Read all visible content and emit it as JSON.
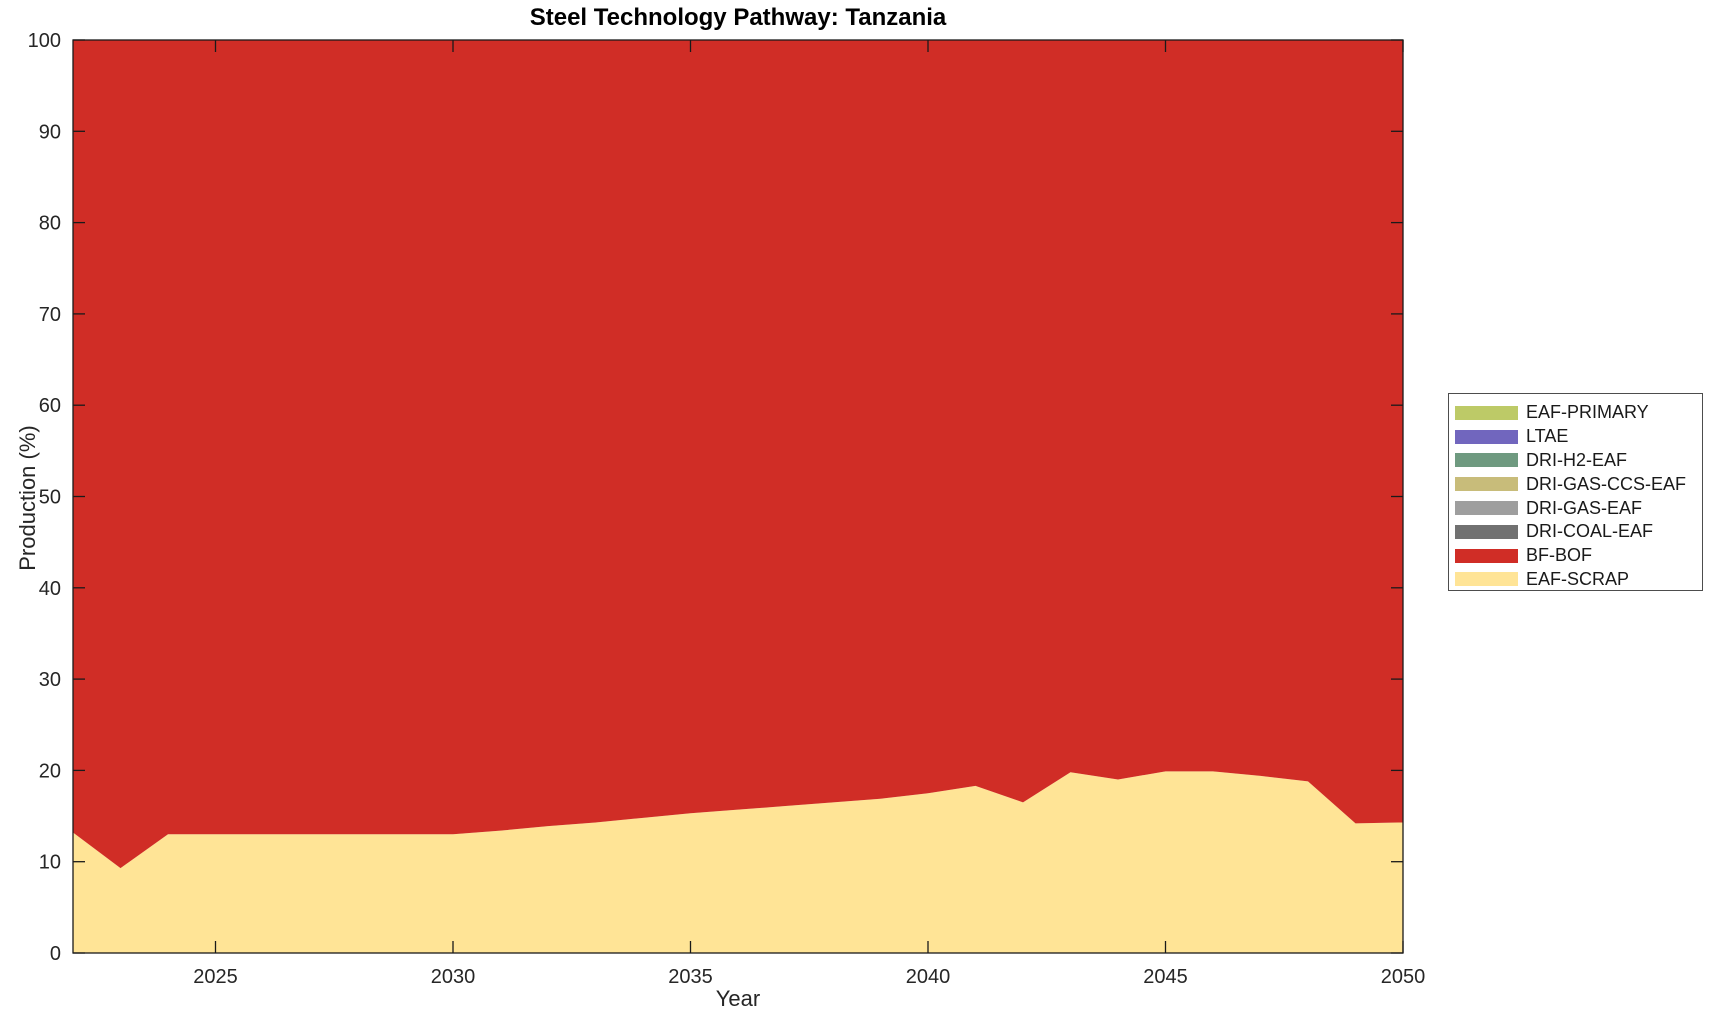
{
  "title": "Steel Technology Pathway: Tanzania",
  "axes": {
    "xlabel": "Year",
    "ylabel": "Production (%)",
    "x_ticks": [
      2025,
      2030,
      2035,
      2040,
      2045,
      2050
    ],
    "y_ticks": [
      0,
      10,
      20,
      30,
      40,
      50,
      60,
      70,
      80,
      90,
      100
    ],
    "axis_color": "#1a1a1a",
    "tick_label_color": "#262626"
  },
  "chart_data": {
    "type": "area",
    "stacked": true,
    "title": "Steel Technology Pathway: Tanzania",
    "xlabel": "Year",
    "ylabel": "Production (%)",
    "xlim": [
      2022,
      2050
    ],
    "ylim": [
      0,
      100
    ],
    "grid": false,
    "legend_position": "right-outside",
    "x": [
      2022,
      2023,
      2024,
      2025,
      2026,
      2027,
      2028,
      2029,
      2030,
      2031,
      2032,
      2033,
      2034,
      2035,
      2036,
      2037,
      2038,
      2039,
      2040,
      2041,
      2042,
      2043,
      2044,
      2045,
      2046,
      2047,
      2048,
      2049,
      2050
    ],
    "series": [
      {
        "name": "EAF-SCRAP",
        "color": "#FFE496",
        "values": [
          13.2,
          9.3,
          13,
          13,
          13,
          13,
          13,
          13,
          13,
          13.4,
          13.9,
          14.3,
          14.8,
          15.3,
          15.7,
          16.1,
          16.5,
          16.9,
          17.5,
          18.3,
          16.5,
          19.8,
          19,
          19.9,
          19.9,
          19.4,
          18.8,
          14.2,
          14.3
        ]
      },
      {
        "name": "BF-BOF",
        "color": "#D02D26",
        "values": [
          86.8,
          90.7,
          87,
          87,
          87,
          87,
          87,
          87,
          87,
          86.6,
          86.1,
          85.7,
          85.2,
          84.7,
          84.3,
          83.9,
          83.5,
          83.1,
          82.5,
          81.7,
          83.5,
          80.2,
          81,
          80.1,
          80.1,
          80.6,
          81.2,
          85.8,
          85.7
        ]
      },
      {
        "name": "DRI-COAL-EAF",
        "color": "#717171",
        "values": [
          0,
          0,
          0,
          0,
          0,
          0,
          0,
          0,
          0,
          0,
          0,
          0,
          0,
          0,
          0,
          0,
          0,
          0,
          0,
          0,
          0,
          0,
          0,
          0,
          0,
          0,
          0,
          0,
          0
        ]
      },
      {
        "name": "DRI-GAS-EAF",
        "color": "#9E9E9E",
        "values": [
          0,
          0,
          0,
          0,
          0,
          0,
          0,
          0,
          0,
          0,
          0,
          0,
          0,
          0,
          0,
          0,
          0,
          0,
          0,
          0,
          0,
          0,
          0,
          0,
          0,
          0,
          0,
          0,
          0
        ]
      },
      {
        "name": "DRI-GAS-CCS-EAF",
        "color": "#C8BC7A",
        "values": [
          0,
          0,
          0,
          0,
          0,
          0,
          0,
          0,
          0,
          0,
          0,
          0,
          0,
          0,
          0,
          0,
          0,
          0,
          0,
          0,
          0,
          0,
          0,
          0,
          0,
          0,
          0,
          0,
          0
        ]
      },
      {
        "name": "DRI-H2-EAF",
        "color": "#6F9A80",
        "values": [
          0,
          0,
          0,
          0,
          0,
          0,
          0,
          0,
          0,
          0,
          0,
          0,
          0,
          0,
          0,
          0,
          0,
          0,
          0,
          0,
          0,
          0,
          0,
          0,
          0,
          0,
          0,
          0,
          0
        ]
      },
      {
        "name": "LTAE",
        "color": "#7166BE",
        "values": [
          0,
          0,
          0,
          0,
          0,
          0,
          0,
          0,
          0,
          0,
          0,
          0,
          0,
          0,
          0,
          0,
          0,
          0,
          0,
          0,
          0,
          0,
          0,
          0,
          0,
          0,
          0,
          0,
          0
        ]
      },
      {
        "name": "EAF-PRIMARY",
        "color": "#BDCA67",
        "values": [
          0,
          0,
          0,
          0,
          0,
          0,
          0,
          0,
          0,
          0,
          0,
          0,
          0,
          0,
          0,
          0,
          0,
          0,
          0,
          0,
          0,
          0,
          0,
          0,
          0,
          0,
          0,
          0,
          0
        ]
      }
    ]
  },
  "legend": {
    "items": [
      {
        "label": "EAF-PRIMARY",
        "color": "#BDCA67"
      },
      {
        "label": "LTAE",
        "color": "#7166BE"
      },
      {
        "label": "DRI-H2-EAF",
        "color": "#6F9A80"
      },
      {
        "label": "DRI-GAS-CCS-EAF",
        "color": "#C8BC7A"
      },
      {
        "label": "DRI-GAS-EAF",
        "color": "#9E9E9E"
      },
      {
        "label": "DRI-COAL-EAF",
        "color": "#717171"
      },
      {
        "label": "BF-BOF",
        "color": "#D02D26"
      },
      {
        "label": "EAF-SCRAP",
        "color": "#FFE496"
      }
    ]
  }
}
